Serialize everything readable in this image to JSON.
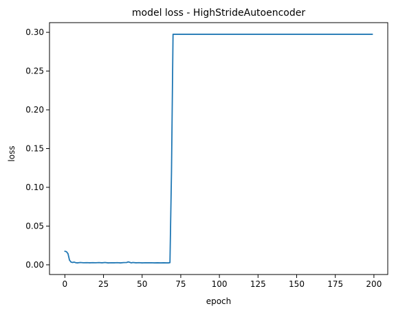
{
  "chart_data": {
    "type": "line",
    "title": "model loss - HighStrideAutoencoder",
    "xlabel": "epoch",
    "ylabel": "loss",
    "xlim": [
      -9.95,
      208.95
    ],
    "ylim": [
      -0.0125,
      0.3125
    ],
    "xticks": [
      0,
      25,
      50,
      75,
      100,
      125,
      150,
      175,
      200
    ],
    "xtick_labels": [
      "0",
      "25",
      "50",
      "75",
      "100",
      "125",
      "150",
      "175",
      "200"
    ],
    "yticks": [
      0.0,
      0.05,
      0.1,
      0.15,
      0.2,
      0.25,
      0.3
    ],
    "ytick_labels": [
      "0.00",
      "0.05",
      "0.10",
      "0.15",
      "0.20",
      "0.25",
      "0.30"
    ],
    "grid": false,
    "series": [
      {
        "color": "#1f77b4",
        "x": [
          0,
          1,
          2,
          3,
          4,
          5,
          6,
          7,
          8,
          10,
          12,
          14,
          16,
          18,
          20,
          22,
          24,
          26,
          28,
          30,
          32,
          34,
          36,
          38,
          40,
          41,
          42,
          43,
          44,
          46,
          48,
          50,
          52,
          54,
          56,
          58,
          60,
          62,
          64,
          66,
          67,
          68,
          69,
          70,
          80,
          100,
          120,
          140,
          160,
          180,
          199
        ],
        "y": [
          0.0175,
          0.017,
          0.0145,
          0.006,
          0.0035,
          0.003,
          0.0035,
          0.0028,
          0.0025,
          0.003,
          0.0027,
          0.0028,
          0.0026,
          0.0028,
          0.0027,
          0.0029,
          0.0026,
          0.003,
          0.0025,
          0.0027,
          0.0026,
          0.0028,
          0.0025,
          0.0029,
          0.003,
          0.0038,
          0.0032,
          0.0025,
          0.003,
          0.0026,
          0.0028,
          0.0025,
          0.0027,
          0.0026,
          0.0027,
          0.0025,
          0.0026,
          0.0025,
          0.0026,
          0.0025,
          0.0025,
          0.0028,
          0.12,
          0.2975,
          0.2975,
          0.2975,
          0.2975,
          0.2975,
          0.2975,
          0.2975,
          0.2975
        ]
      }
    ]
  }
}
